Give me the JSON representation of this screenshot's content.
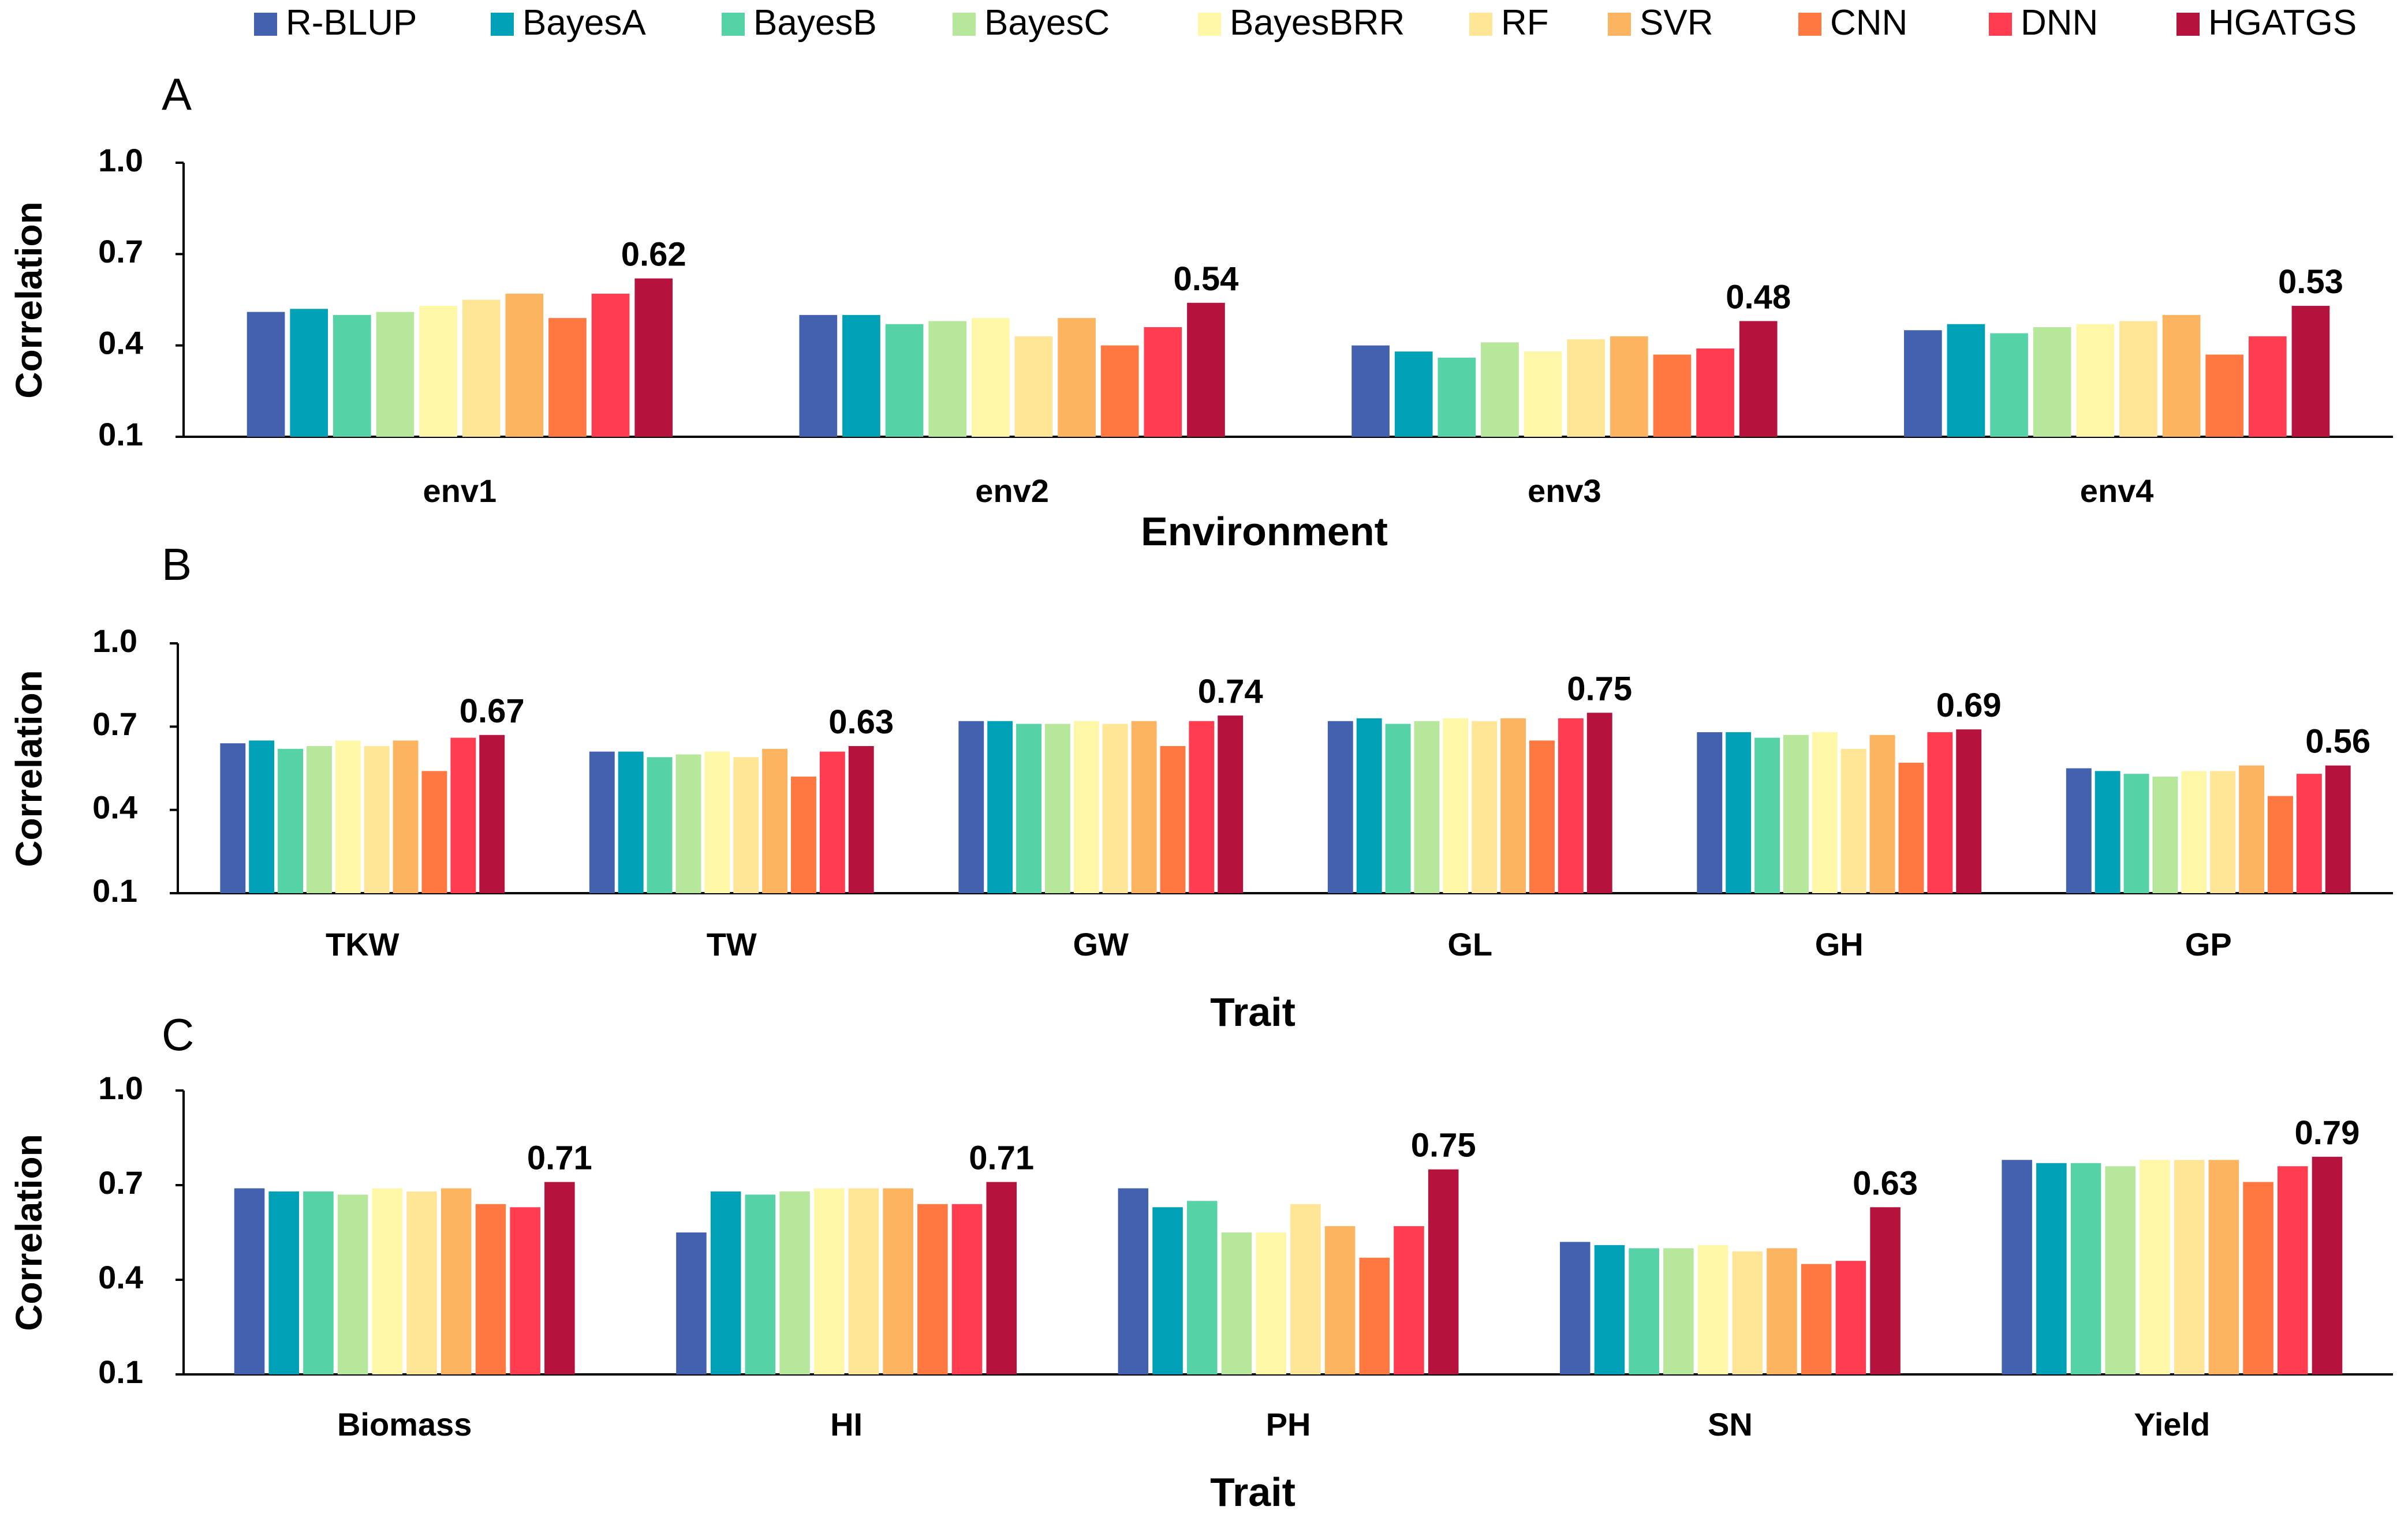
{
  "legend": [
    {
      "name": "R-BLUP",
      "color": "#4361AE"
    },
    {
      "name": "BayesA",
      "color": "#00A0B6"
    },
    {
      "name": "BayesB",
      "color": "#55D3A7"
    },
    {
      "name": "BayesC",
      "color": "#B7E79B"
    },
    {
      "name": "BayesBRR",
      "color": "#FFF7A8"
    },
    {
      "name": "RF",
      "color": "#FFE596"
    },
    {
      "name": "SVR",
      "color": "#FDB460"
    },
    {
      "name": "CNN",
      "color": "#FF7841"
    },
    {
      "name": "DNN",
      "color": "#FF3C50"
    },
    {
      "name": "HGATGS",
      "color": "#B5123E"
    }
  ],
  "chart_data": [
    {
      "type": "bar",
      "panel": "A",
      "title": "",
      "xlabel": "Environment",
      "ylabel": "Correlation",
      "ylim": [
        0.1,
        1.0
      ],
      "yticks": [
        "0.1",
        "0.4",
        "0.7",
        "1.0"
      ],
      "categories": [
        "env1",
        "env2",
        "env3",
        "env4"
      ],
      "series": [
        {
          "name": "R-BLUP",
          "values": [
            0.51,
            0.5,
            0.4,
            0.45
          ]
        },
        {
          "name": "BayesA",
          "values": [
            0.52,
            0.5,
            0.38,
            0.47
          ]
        },
        {
          "name": "BayesB",
          "values": [
            0.5,
            0.47,
            0.36,
            0.44
          ]
        },
        {
          "name": "BayesC",
          "values": [
            0.51,
            0.48,
            0.41,
            0.46
          ]
        },
        {
          "name": "BayesBRR",
          "values": [
            0.53,
            0.49,
            0.38,
            0.47
          ]
        },
        {
          "name": "RF",
          "values": [
            0.55,
            0.43,
            0.42,
            0.48
          ]
        },
        {
          "name": "SVR",
          "values": [
            0.57,
            0.49,
            0.43,
            0.5
          ]
        },
        {
          "name": "CNN",
          "values": [
            0.49,
            0.4,
            0.37,
            0.37
          ]
        },
        {
          "name": "DNN",
          "values": [
            0.57,
            0.46,
            0.39,
            0.43
          ]
        },
        {
          "name": "HGATGS",
          "values": [
            0.62,
            0.54,
            0.48,
            0.53
          ]
        }
      ],
      "annotations": [
        "0.62",
        "0.54",
        "0.48",
        "0.53"
      ]
    },
    {
      "type": "bar",
      "panel": "B",
      "title": "",
      "xlabel": "Trait",
      "ylabel": "Correlation",
      "ylim": [
        0.1,
        1.0
      ],
      "yticks": [
        "0.1",
        "0.4",
        "0.7",
        "1.0"
      ],
      "categories": [
        "TKW",
        "TW",
        "GW",
        "GL",
        "GH",
        "GP"
      ],
      "series": [
        {
          "name": "R-BLUP",
          "values": [
            0.64,
            0.61,
            0.72,
            0.72,
            0.68,
            0.55
          ]
        },
        {
          "name": "BayesA",
          "values": [
            0.65,
            0.61,
            0.72,
            0.73,
            0.68,
            0.54
          ]
        },
        {
          "name": "BayesB",
          "values": [
            0.62,
            0.59,
            0.71,
            0.71,
            0.66,
            0.53
          ]
        },
        {
          "name": "BayesC",
          "values": [
            0.63,
            0.6,
            0.71,
            0.72,
            0.67,
            0.52
          ]
        },
        {
          "name": "BayesBRR",
          "values": [
            0.65,
            0.61,
            0.72,
            0.73,
            0.68,
            0.54
          ]
        },
        {
          "name": "RF",
          "values": [
            0.63,
            0.59,
            0.71,
            0.72,
            0.62,
            0.54
          ]
        },
        {
          "name": "SVR",
          "values": [
            0.65,
            0.62,
            0.72,
            0.73,
            0.67,
            0.56
          ]
        },
        {
          "name": "CNN",
          "values": [
            0.54,
            0.52,
            0.63,
            0.65,
            0.57,
            0.45
          ]
        },
        {
          "name": "DNN",
          "values": [
            0.66,
            0.61,
            0.72,
            0.73,
            0.68,
            0.53
          ]
        },
        {
          "name": "HGATGS",
          "values": [
            0.67,
            0.63,
            0.74,
            0.75,
            0.69,
            0.56
          ]
        }
      ],
      "annotations": [
        "0.67",
        "0.63",
        "0.74",
        "0.75",
        "0.69",
        "0.56"
      ]
    },
    {
      "type": "bar",
      "panel": "C",
      "title": "",
      "xlabel": "Trait",
      "ylabel": "Correlation",
      "ylim": [
        0.1,
        1.0
      ],
      "yticks": [
        "0.1",
        "0.4",
        "0.7",
        "1.0"
      ],
      "categories": [
        "Biomass",
        "HI",
        "PH",
        "SN",
        "Yield"
      ],
      "series": [
        {
          "name": "R-BLUP",
          "values": [
            0.69,
            0.55,
            0.69,
            0.52,
            0.78
          ]
        },
        {
          "name": "BayesA",
          "values": [
            0.68,
            0.68,
            0.63,
            0.51,
            0.77
          ]
        },
        {
          "name": "BayesB",
          "values": [
            0.68,
            0.67,
            0.65,
            0.5,
            0.77
          ]
        },
        {
          "name": "BayesC",
          "values": [
            0.67,
            0.68,
            0.55,
            0.5,
            0.76
          ]
        },
        {
          "name": "BayesBRR",
          "values": [
            0.69,
            0.69,
            0.55,
            0.51,
            0.78
          ]
        },
        {
          "name": "RF",
          "values": [
            0.68,
            0.69,
            0.64,
            0.49,
            0.78
          ]
        },
        {
          "name": "SVR",
          "values": [
            0.69,
            0.69,
            0.57,
            0.5,
            0.78
          ]
        },
        {
          "name": "CNN",
          "values": [
            0.64,
            0.64,
            0.47,
            0.45,
            0.71
          ]
        },
        {
          "name": "DNN",
          "values": [
            0.63,
            0.64,
            0.57,
            0.46,
            0.76
          ]
        },
        {
          "name": "HGATGS",
          "values": [
            0.71,
            0.71,
            0.75,
            0.63,
            0.79
          ]
        }
      ],
      "annotations": [
        "0.71",
        "0.71",
        "0.75",
        "0.63",
        "0.79"
      ]
    }
  ]
}
